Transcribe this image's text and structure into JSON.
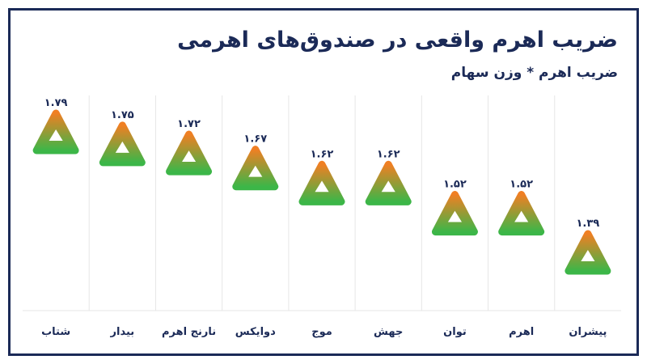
{
  "chart_data": {
    "type": "scatter",
    "title": "ضریب اهرم واقعی در صندوق‌های اهرمی",
    "subtitle": "ضریب اهرم * وزن سهام",
    "categories": [
      "شتاب",
      "بیدار",
      "نارنج اهرم",
      "دوایکس",
      "موج",
      "جهش",
      "توان",
      "اهرم",
      "پیشران"
    ],
    "values": [
      1.79,
      1.75,
      1.72,
      1.67,
      1.62,
      1.62,
      1.52,
      1.52,
      1.39
    ],
    "value_labels": [
      "۱.۷۹",
      "۱.۷۵",
      "۱.۷۲",
      "۱.۶۷",
      "۱.۶۲",
      "۱.۶۲",
      "۱.۵۲",
      "۱.۵۲",
      "۱.۳۹"
    ],
    "marker": "triangle",
    "colors": {
      "marker_top": "#f07f23",
      "marker_bottom": "#3cb648",
      "text": "#1b2a57",
      "grid": "#e6e6e6",
      "frame": "#1b2a57"
    },
    "grid": true
  }
}
